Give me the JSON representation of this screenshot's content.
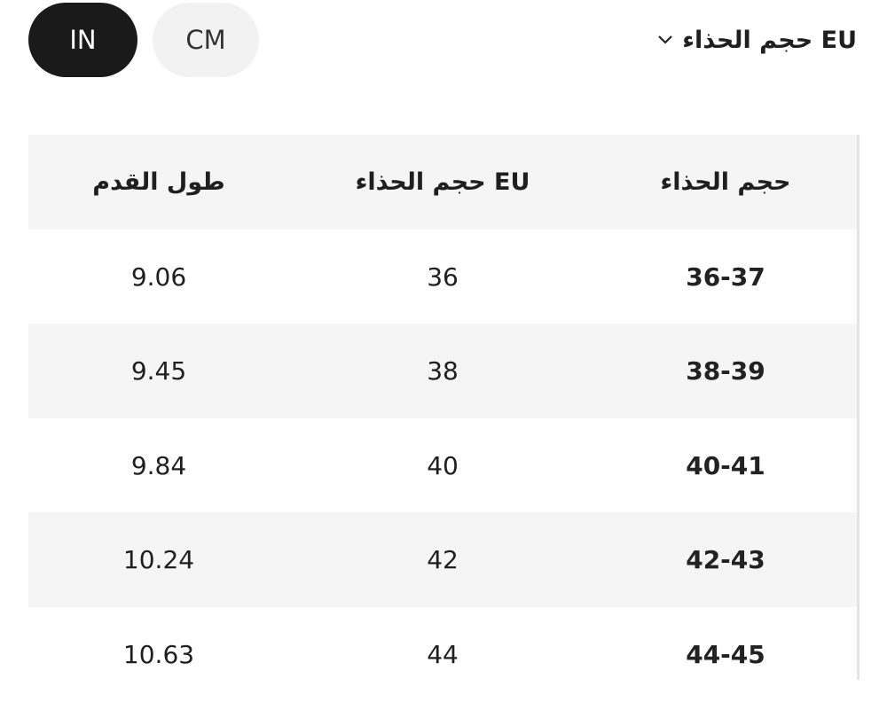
{
  "units": {
    "options": [
      "IN",
      "CM"
    ],
    "selected": "IN"
  },
  "size_system": {
    "label": "EU حجم الحذاء"
  },
  "table": {
    "header": [
      "حجم الحذاء",
      "EU حجم الحذاء",
      "طول القدم"
    ],
    "rows": [
      [
        "36-37",
        "36",
        "9.06"
      ],
      [
        "38-39",
        "38",
        "9.45"
      ],
      [
        "40-41",
        "40",
        "9.84"
      ],
      [
        "42-43",
        "42",
        "10.24"
      ],
      [
        "44-45",
        "44",
        "10.63"
      ]
    ]
  }
}
